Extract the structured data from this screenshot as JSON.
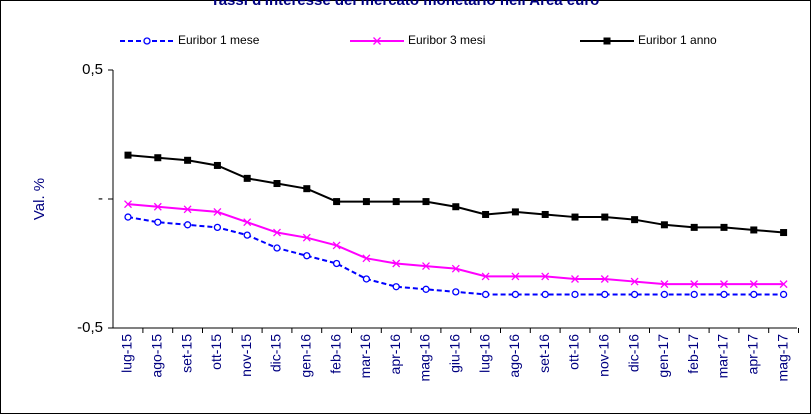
{
  "chart_data": {
    "type": "line",
    "title": "Tassi d'interesse del mercato monetario nell'Area euro",
    "y_label": "Val. %",
    "categories": [
      "lug-15",
      "ago-15",
      "set-15",
      "ott-15",
      "nov-15",
      "dic-15",
      "gen-16",
      "feb-16",
      "mar-16",
      "apr-16",
      "mag-16",
      "giu-16",
      "lug-16",
      "ago-16",
      "set-16",
      "ott-16",
      "nov-16",
      "dic-16",
      "gen-17",
      "feb-17",
      "mar-17",
      "apr-17",
      "mag-17"
    ],
    "series": [
      {
        "name": "Euribor 1 mese",
        "color": "#0000ff",
        "marker": "circle",
        "dashed": true,
        "values": [
          -0.07,
          -0.09,
          -0.1,
          -0.11,
          -0.14,
          -0.19,
          -0.22,
          -0.25,
          -0.31,
          -0.34,
          -0.35,
          -0.36,
          -0.37,
          -0.37,
          -0.37,
          -0.37,
          -0.37,
          -0.37,
          -0.37,
          -0.37,
          -0.37,
          -0.37,
          -0.37
        ]
      },
      {
        "name": "Euribor 3 mesi",
        "color": "#ff00ff",
        "marker": "x",
        "dashed": false,
        "values": [
          -0.02,
          -0.03,
          -0.04,
          -0.05,
          -0.09,
          -0.13,
          -0.15,
          -0.18,
          -0.23,
          -0.25,
          -0.26,
          -0.27,
          -0.3,
          -0.3,
          -0.3,
          -0.31,
          -0.31,
          -0.32,
          -0.33,
          -0.33,
          -0.33,
          -0.33,
          -0.33
        ]
      },
      {
        "name": "Euribor 1 anno",
        "color": "#000000",
        "marker": "square",
        "dashed": false,
        "values": [
          0.17,
          0.16,
          0.15,
          0.13,
          0.08,
          0.06,
          0.04,
          -0.01,
          -0.01,
          -0.01,
          -0.01,
          -0.03,
          -0.06,
          -0.05,
          -0.06,
          -0.07,
          -0.07,
          -0.08,
          -0.1,
          -0.11,
          -0.11,
          -0.12,
          -0.13
        ]
      }
    ],
    "ylim": [
      -0.5,
      0.5
    ],
    "yticks": [
      {
        "value": -0.5,
        "label": "-0,5"
      },
      {
        "value": 0,
        "label": "-"
      },
      {
        "value": 0.5,
        "label": "0,5"
      }
    ],
    "legend": "top"
  }
}
